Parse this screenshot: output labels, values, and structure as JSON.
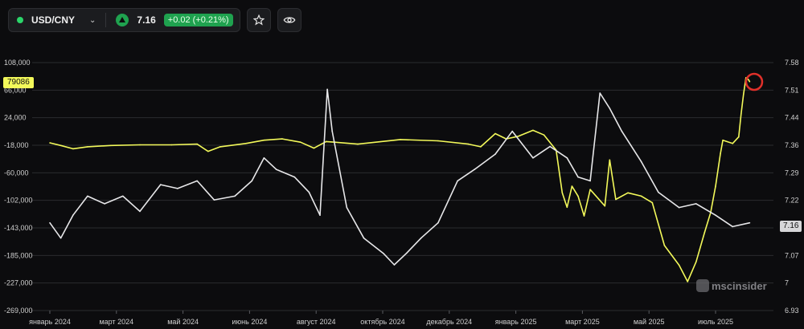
{
  "header": {
    "symbol": "USD/CNY",
    "price": "7.16",
    "change": "+0.02 (+0.21%)",
    "icons": [
      "chevron-down-icon",
      "arrow-up-icon",
      "star-icon",
      "eye-icon"
    ]
  },
  "watermark": "mscinsider",
  "chart_data": {
    "type": "line",
    "title": "",
    "grid": true,
    "x_ticks": [
      "январь 2024",
      "март 2024",
      "май 2024",
      "июнь 2024",
      "август 2024",
      "октябрь 2024",
      "декабрь 2024",
      "январь 2025",
      "март 2025",
      "май 2025",
      "июль 2025"
    ],
    "x_range": [
      "2024-01-01",
      "2025-07-29"
    ],
    "left_axis": {
      "ticks": [
        "108,000",
        "66,000",
        "24,000",
        "-18,000",
        "-60,000",
        "-102,000",
        "-143,000",
        "-185,000",
        "-227,000",
        "-269,000"
      ],
      "ylim": [
        -269000,
        108000
      ],
      "badge": "79086"
    },
    "right_axis": {
      "ticks": [
        "7.58",
        "7.51",
        "7.44",
        "7.36",
        "7.29",
        "7.22",
        "7.16",
        "7.07",
        "7",
        "6.93"
      ],
      "ylim": [
        6.93,
        7.58
      ],
      "badge": "7.16"
    },
    "series": [
      {
        "axis": "left",
        "color": "#f3f95a",
        "points": [
          [
            "2024-01-01",
            -14000
          ],
          [
            "2024-01-10",
            -18000
          ],
          [
            "2024-01-20",
            -23000
          ],
          [
            "2024-02-01",
            -20000
          ],
          [
            "2024-02-20",
            -18000
          ],
          [
            "2024-03-15",
            -17000
          ],
          [
            "2024-04-10",
            -17000
          ],
          [
            "2024-05-01",
            -16000
          ],
          [
            "2024-05-10",
            -27000
          ],
          [
            "2024-05-20",
            -20000
          ],
          [
            "2024-06-10",
            -15000
          ],
          [
            "2024-06-25",
            -10000
          ],
          [
            "2024-07-10",
            -8000
          ],
          [
            "2024-07-25",
            -13000
          ],
          [
            "2024-08-05",
            -22000
          ],
          [
            "2024-08-15",
            -12000
          ],
          [
            "2024-08-22",
            -13000
          ],
          [
            "2024-09-10",
            -16000
          ],
          [
            "2024-10-15",
            -9000
          ],
          [
            "2024-11-15",
            -11000
          ],
          [
            "2024-12-10",
            -16000
          ],
          [
            "2024-12-20",
            -20000
          ],
          [
            "2025-01-01",
            0
          ],
          [
            "2025-01-10",
            -8000
          ],
          [
            "2025-01-20",
            -4000
          ],
          [
            "2025-02-01",
            5000
          ],
          [
            "2025-02-10",
            -2000
          ],
          [
            "2025-02-20",
            -25000
          ],
          [
            "2025-02-25",
            -90000
          ],
          [
            "2025-03-01",
            -112000
          ],
          [
            "2025-03-05",
            -80000
          ],
          [
            "2025-03-10",
            -95000
          ],
          [
            "2025-03-15",
            -125000
          ],
          [
            "2025-03-20",
            -85000
          ],
          [
            "2025-04-01",
            -110000
          ],
          [
            "2025-04-05",
            -40000
          ],
          [
            "2025-04-10",
            -100000
          ],
          [
            "2025-04-20",
            -90000
          ],
          [
            "2025-05-01",
            -95000
          ],
          [
            "2025-05-10",
            -105000
          ],
          [
            "2025-05-20",
            -170000
          ],
          [
            "2025-06-01",
            -200000
          ],
          [
            "2025-06-08",
            -225000
          ],
          [
            "2025-06-15",
            -195000
          ],
          [
            "2025-06-22",
            -150000
          ],
          [
            "2025-06-27",
            -120000
          ],
          [
            "2025-07-01",
            -80000
          ],
          [
            "2025-07-05",
            -30000
          ],
          [
            "2025-07-07",
            -10000
          ],
          [
            "2025-07-15",
            -15000
          ],
          [
            "2025-07-20",
            -5000
          ],
          [
            "2025-07-22",
            30000
          ],
          [
            "2025-07-24",
            60000
          ],
          [
            "2025-07-26",
            85000
          ],
          [
            "2025-07-28",
            82000
          ],
          [
            "2025-07-29",
            79086
          ]
        ]
      },
      {
        "axis": "right",
        "color": "#e7e7e9",
        "points": [
          [
            "2024-01-01",
            7.16
          ],
          [
            "2024-01-10",
            7.12
          ],
          [
            "2024-01-20",
            7.18
          ],
          [
            "2024-02-01",
            7.23
          ],
          [
            "2024-02-15",
            7.21
          ],
          [
            "2024-03-01",
            7.23
          ],
          [
            "2024-03-15",
            7.19
          ],
          [
            "2024-04-01",
            7.26
          ],
          [
            "2024-04-15",
            7.25
          ],
          [
            "2024-05-01",
            7.27
          ],
          [
            "2024-05-15",
            7.22
          ],
          [
            "2024-06-01",
            7.23
          ],
          [
            "2024-06-15",
            7.27
          ],
          [
            "2024-06-25",
            7.33
          ],
          [
            "2024-07-05",
            7.3
          ],
          [
            "2024-07-20",
            7.28
          ],
          [
            "2024-08-01",
            7.24
          ],
          [
            "2024-08-10",
            7.18
          ],
          [
            "2024-08-16",
            7.51
          ],
          [
            "2024-08-20",
            7.4
          ],
          [
            "2024-09-01",
            7.2
          ],
          [
            "2024-09-15",
            7.12
          ],
          [
            "2024-10-01",
            7.08
          ],
          [
            "2024-10-10",
            7.05
          ],
          [
            "2024-10-20",
            7.08
          ],
          [
            "2024-11-01",
            7.12
          ],
          [
            "2024-11-15",
            7.16
          ],
          [
            "2024-12-01",
            7.27
          ],
          [
            "2024-12-15",
            7.3
          ],
          [
            "2025-01-01",
            7.34
          ],
          [
            "2025-01-15",
            7.4
          ],
          [
            "2025-02-01",
            7.33
          ],
          [
            "2025-02-15",
            7.36
          ],
          [
            "2025-03-01",
            7.33
          ],
          [
            "2025-03-10",
            7.28
          ],
          [
            "2025-03-20",
            7.27
          ],
          [
            "2025-03-28",
            7.5
          ],
          [
            "2025-04-05",
            7.46
          ],
          [
            "2025-04-15",
            7.4
          ],
          [
            "2025-05-01",
            7.32
          ],
          [
            "2025-05-15",
            7.24
          ],
          [
            "2025-06-01",
            7.2
          ],
          [
            "2025-06-15",
            7.21
          ],
          [
            "2025-07-01",
            7.18
          ],
          [
            "2025-07-15",
            7.15
          ],
          [
            "2025-07-29",
            7.16
          ]
        ]
      }
    ]
  }
}
